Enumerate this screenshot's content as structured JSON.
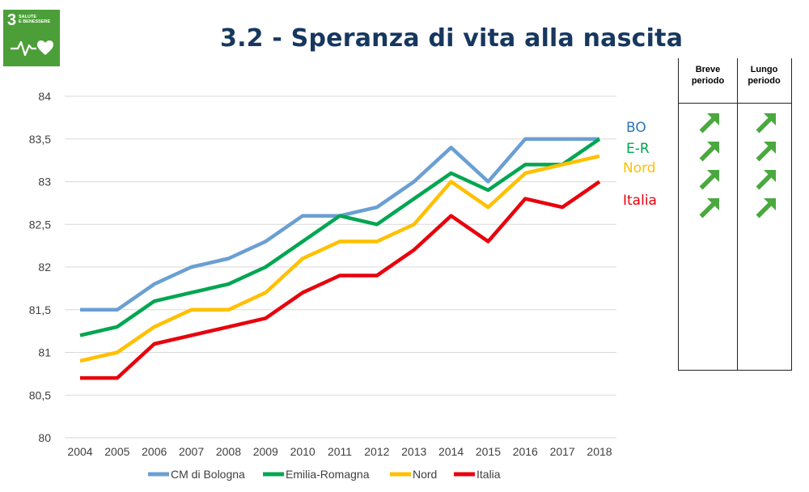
{
  "logo": {
    "number": "3",
    "text_line1": "SALUTE",
    "text_line2": "E BENESSERE",
    "icon": "heartbeat-heart-icon",
    "color": "#4c9f38"
  },
  "title": "3.2 - Speranza di vita alla nascita",
  "chart_data": {
    "type": "line",
    "title": "3.2 - Speranza di vita alla nascita",
    "xlabel": "",
    "ylabel": "",
    "ylim": [
      80,
      84
    ],
    "yticks": [
      "80",
      "80,5",
      "81",
      "81,5",
      "82",
      "82,5",
      "83",
      "83,5",
      "84"
    ],
    "grid": "horizontal",
    "legend": "bottom",
    "x": [
      "2004",
      "2005",
      "2006",
      "2007",
      "2008",
      "2009",
      "2010",
      "2011",
      "2012",
      "2013",
      "2014",
      "2015",
      "2016",
      "2017",
      "2018"
    ],
    "series": [
      {
        "name": "CM di Bologna",
        "color": "#6a9fd2",
        "values": [
          81.5,
          81.5,
          81.8,
          82.0,
          82.1,
          82.3,
          82.6,
          82.6,
          82.7,
          83.0,
          83.4,
          83.0,
          83.5,
          83.5,
          83.5
        ]
      },
      {
        "name": "Emilia-Romagna",
        "color": "#00a651",
        "values": [
          81.2,
          81.3,
          81.6,
          81.7,
          81.8,
          82.0,
          82.3,
          82.6,
          82.5,
          82.8,
          83.1,
          82.9,
          83.2,
          83.2,
          83.5
        ]
      },
      {
        "name": "Nord",
        "color": "#ffc000",
        "values": [
          80.9,
          81.0,
          81.3,
          81.5,
          81.5,
          81.7,
          82.1,
          82.3,
          82.3,
          82.5,
          83.0,
          82.7,
          83.1,
          83.2,
          83.3
        ]
      },
      {
        "name": "Italia",
        "color": "#e8000c",
        "values": [
          80.7,
          80.7,
          81.1,
          81.2,
          81.3,
          81.4,
          81.7,
          81.9,
          81.9,
          82.2,
          82.6,
          82.3,
          82.8,
          82.7,
          83.0
        ]
      }
    ],
    "end_labels": [
      {
        "text": "BO",
        "color": "#2e75b6"
      },
      {
        "text": "E-R",
        "color": "#00a651"
      },
      {
        "text": "Nord",
        "color": "#ffc000"
      },
      {
        "text": "Italia",
        "color": "#e8000c"
      }
    ]
  },
  "trend_table": {
    "headers": [
      "Breve\nperiodo",
      "Lungo\nperiodo"
    ],
    "arrow_color": "#4aa83f",
    "rows": [
      {
        "short": "up-right-arrow-icon",
        "long": "up-right-arrow-icon"
      },
      {
        "short": "up-right-arrow-icon",
        "long": "up-right-arrow-icon"
      },
      {
        "short": "up-right-arrow-icon",
        "long": "up-right-arrow-icon"
      },
      {
        "short": "up-right-arrow-icon",
        "long": "up-right-arrow-icon"
      }
    ]
  }
}
